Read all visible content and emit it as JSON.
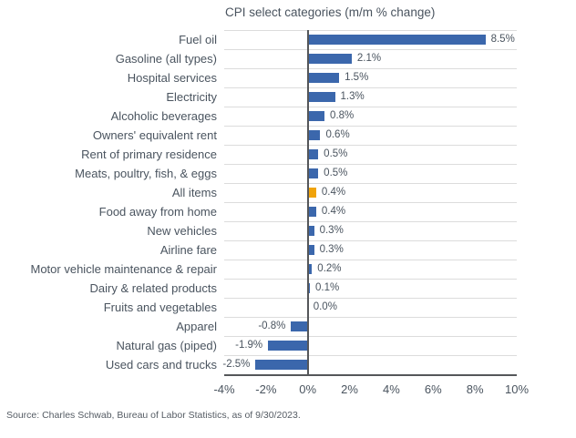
{
  "chart_data": {
    "type": "bar",
    "orientation": "horizontal",
    "title": "CPI select categories (m/m % change)",
    "categories": [
      "Fuel oil",
      "Gasoline (all types)",
      "Hospital services",
      "Electricity",
      "Alcoholic beverages",
      "Owners' equivalent rent",
      "Rent of primary residence",
      "Meats, poultry, fish, & eggs",
      "All items",
      "Food away from home",
      "New vehicles",
      "Airline fare",
      "Motor vehicle maintenance & repair",
      "Dairy & related products",
      "Fruits and vegetables",
      "Apparel",
      "Natural gas (piped)",
      "Used cars and trucks"
    ],
    "values": [
      8.5,
      2.1,
      1.5,
      1.3,
      0.8,
      0.6,
      0.5,
      0.5,
      0.4,
      0.4,
      0.3,
      0.3,
      0.2,
      0.1,
      0.0,
      -0.8,
      -1.9,
      -2.5
    ],
    "value_labels": [
      "8.5%",
      "2.1%",
      "1.5%",
      "1.3%",
      "0.8%",
      "0.6%",
      "0.5%",
      "0.5%",
      "0.4%",
      "0.4%",
      "0.3%",
      "0.3%",
      "0.2%",
      "0.1%",
      "0.0%",
      "-0.8%",
      "-1.9%",
      "-2.5%"
    ],
    "highlight_index": 8,
    "highlight_category": "All items",
    "xlim": [
      -4,
      10
    ],
    "x_ticks": [
      -4,
      -2,
      0,
      2,
      4,
      6,
      8,
      10
    ],
    "x_tick_labels": [
      "-4%",
      "-2%",
      "0%",
      "2%",
      "4%",
      "6%",
      "8%",
      "10%"
    ],
    "grid": "horizontal row separators on",
    "legend": "none"
  },
  "source_note": "Source: Charles Schwab, Bureau of Labor Statistics, as of 9/30/2023.",
  "colors": {
    "bar_blue": "#3b67ac",
    "bar_highlight": "#f0a30a",
    "gridline": "#dcdcdc",
    "axis_line": "#55575a",
    "text": "#4a545f",
    "source_text": "#555c64"
  }
}
